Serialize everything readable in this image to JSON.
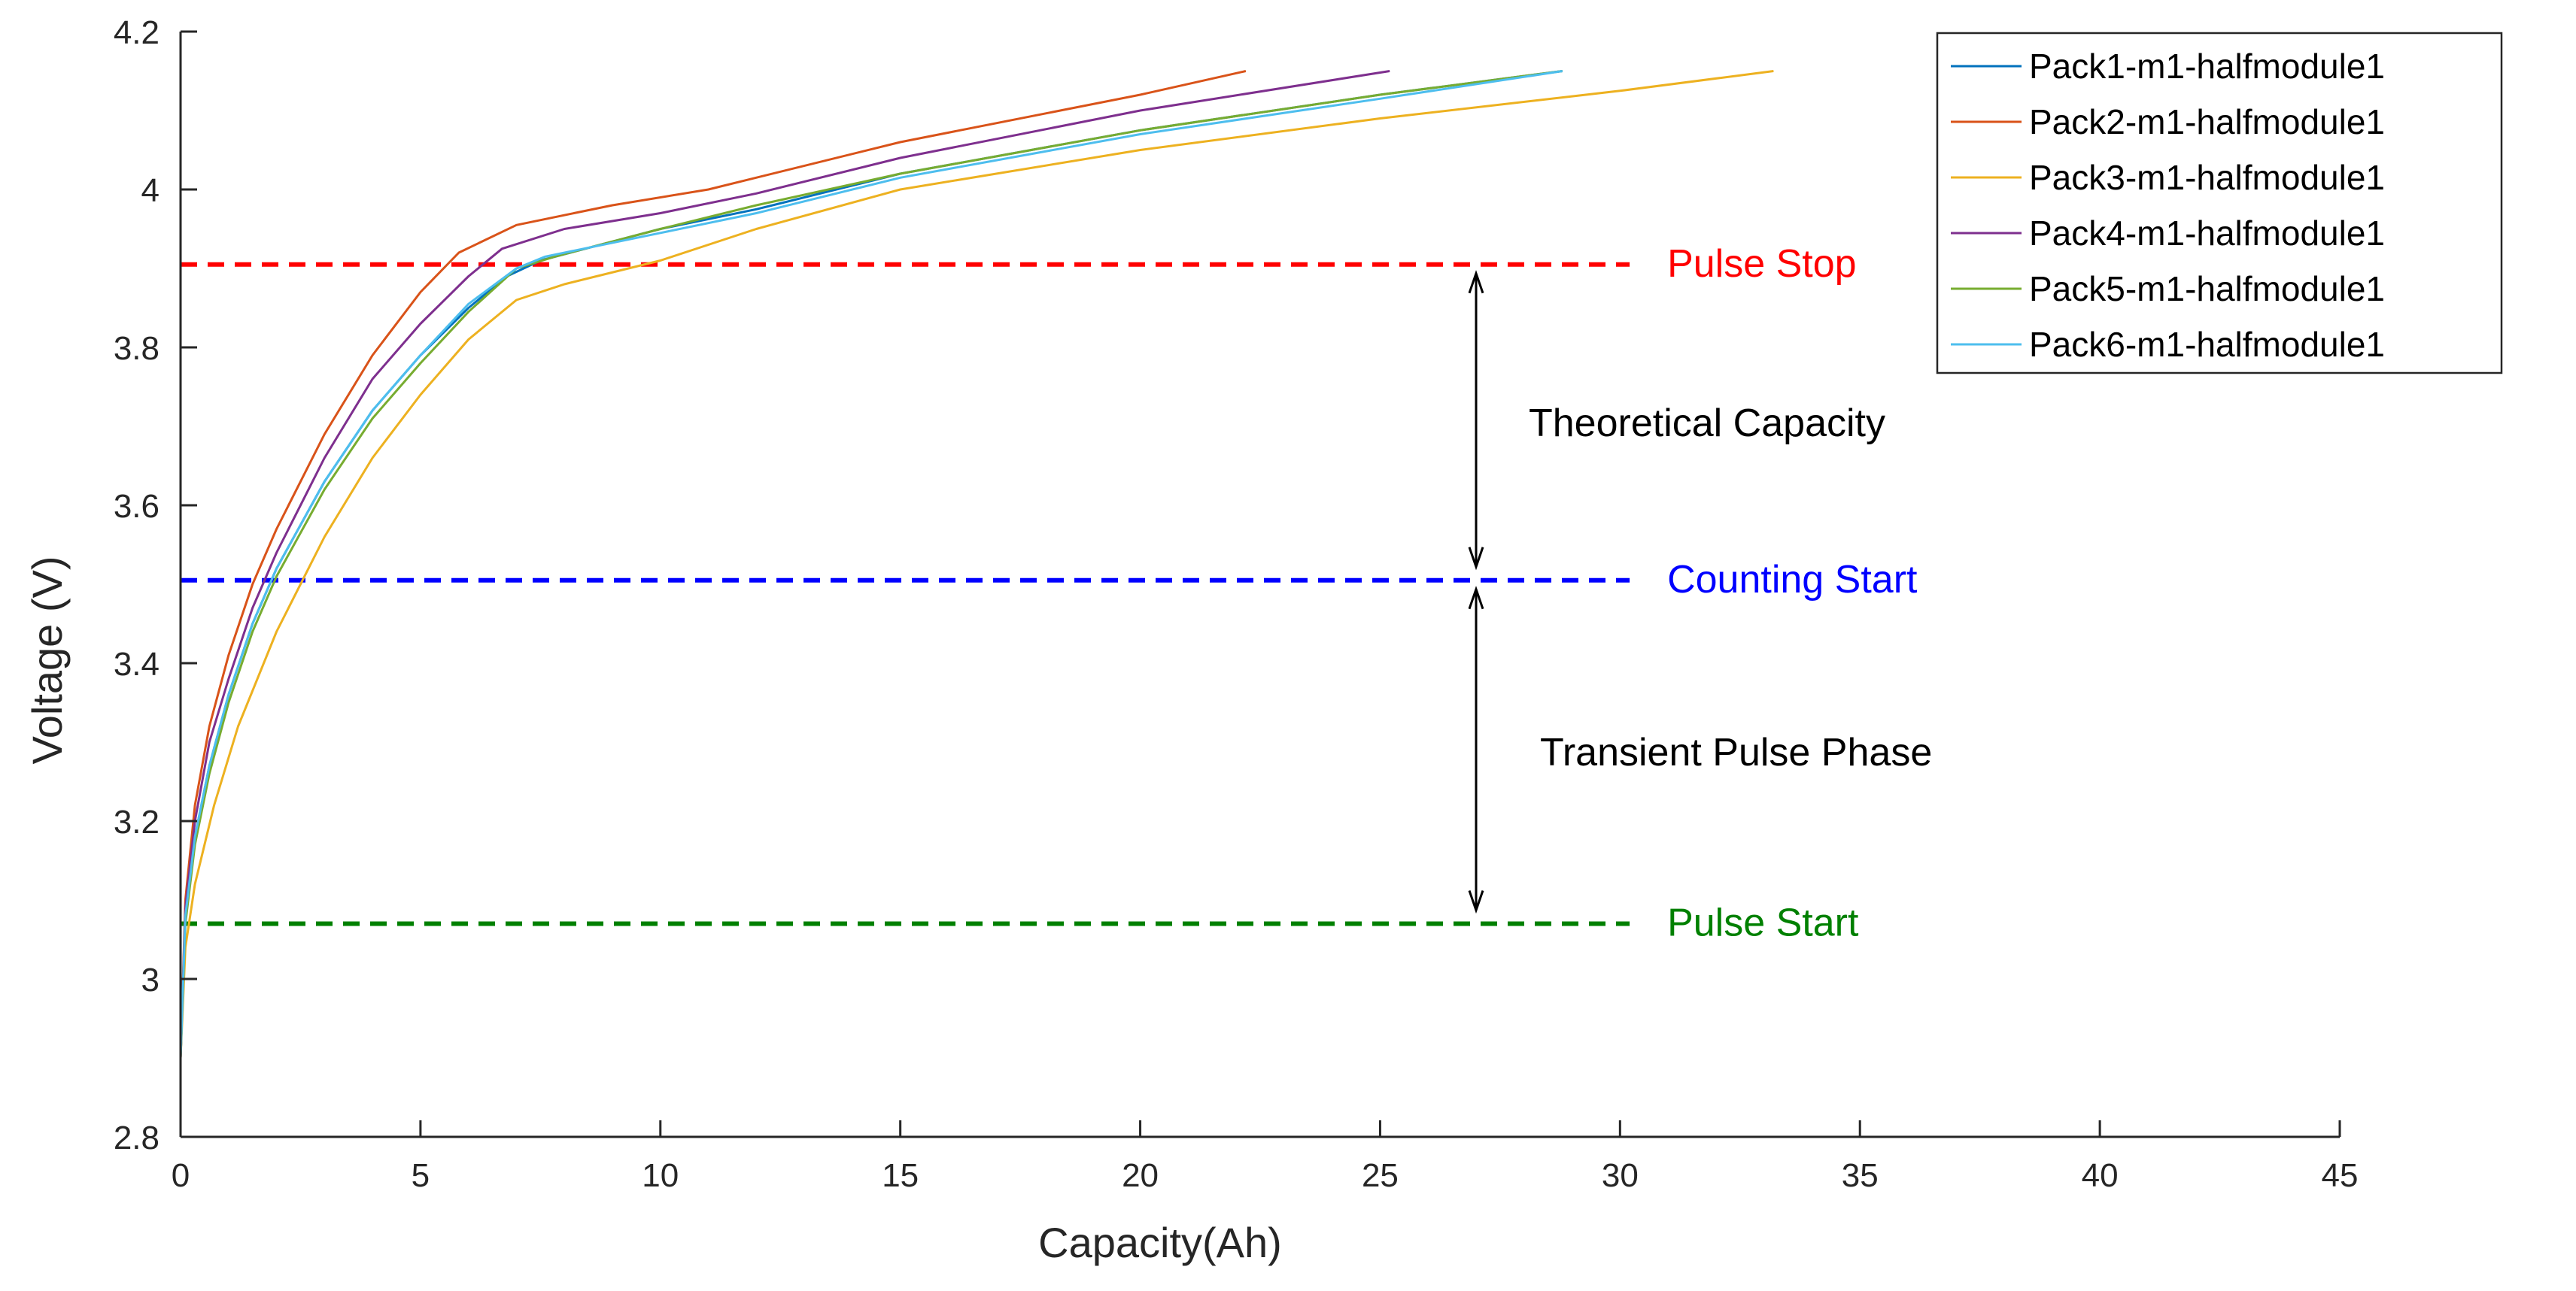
{
  "chart_data": {
    "type": "line",
    "title": "",
    "xlabel": "Capacity(Ah)",
    "ylabel": "Voltage (V)",
    "xlim": [
      0,
      45
    ],
    "ylim": [
      2.8,
      4.2
    ],
    "xticks": [
      "0",
      "5",
      "10",
      "15",
      "20",
      "25",
      "30",
      "35",
      "40",
      "45"
    ],
    "yticks": [
      "2.8",
      "3",
      "3.2",
      "3.4",
      "3.6",
      "3.8",
      "4",
      "4.2"
    ],
    "grid": false,
    "legend_position": "top-right",
    "series": [
      {
        "name": "Pack1-m1-halfmodule1",
        "color": "#0072BD",
        "points": [
          [
            0,
            2.9
          ],
          [
            0.1,
            3.08
          ],
          [
            0.3,
            3.18
          ],
          [
            0.6,
            3.27
          ],
          [
            1,
            3.36
          ],
          [
            1.5,
            3.45
          ],
          [
            2,
            3.52
          ],
          [
            3,
            3.63
          ],
          [
            4,
            3.72
          ],
          [
            5,
            3.79
          ],
          [
            6,
            3.85
          ],
          [
            6.8,
            3.89
          ],
          [
            7.5,
            3.91
          ],
          [
            10,
            3.95
          ],
          [
            12,
            3.975
          ],
          [
            15,
            4.02
          ],
          [
            20,
            4.075
          ],
          [
            25,
            4.12
          ],
          [
            28.8,
            4.15
          ]
        ]
      },
      {
        "name": "Pack2-m1-halfmodule1",
        "color": "#D95319",
        "points": [
          [
            0,
            2.9
          ],
          [
            0.1,
            3.1
          ],
          [
            0.3,
            3.22
          ],
          [
            0.6,
            3.32
          ],
          [
            1,
            3.41
          ],
          [
            1.5,
            3.5
          ],
          [
            2,
            3.57
          ],
          [
            3,
            3.69
          ],
          [
            4,
            3.79
          ],
          [
            5,
            3.87
          ],
          [
            5.8,
            3.92
          ],
          [
            7,
            3.955
          ],
          [
            9,
            3.98
          ],
          [
            11,
            4.0
          ],
          [
            15,
            4.06
          ],
          [
            20,
            4.12
          ],
          [
            22.2,
            4.15
          ]
        ]
      },
      {
        "name": "Pack3-m1-halfmodule1",
        "color": "#EDB120",
        "points": [
          [
            0,
            2.9
          ],
          [
            0.1,
            3.04
          ],
          [
            0.3,
            3.12
          ],
          [
            0.7,
            3.22
          ],
          [
            1.2,
            3.32
          ],
          [
            2,
            3.44
          ],
          [
            3,
            3.56
          ],
          [
            4,
            3.66
          ],
          [
            5,
            3.74
          ],
          [
            6,
            3.81
          ],
          [
            7,
            3.86
          ],
          [
            8,
            3.88
          ],
          [
            10,
            3.91
          ],
          [
            12,
            3.95
          ],
          [
            15,
            4.0
          ],
          [
            20,
            4.05
          ],
          [
            25,
            4.09
          ],
          [
            30,
            4.125
          ],
          [
            33.2,
            4.15
          ]
        ]
      },
      {
        "name": "Pack4-m1-halfmodule1",
        "color": "#7E2F8E",
        "points": [
          [
            0,
            2.9
          ],
          [
            0.1,
            3.09
          ],
          [
            0.3,
            3.2
          ],
          [
            0.6,
            3.3
          ],
          [
            1,
            3.38
          ],
          [
            1.5,
            3.47
          ],
          [
            2,
            3.54
          ],
          [
            3,
            3.66
          ],
          [
            4,
            3.76
          ],
          [
            5,
            3.83
          ],
          [
            6,
            3.89
          ],
          [
            6.7,
            3.925
          ],
          [
            8,
            3.95
          ],
          [
            10,
            3.97
          ],
          [
            12,
            3.995
          ],
          [
            15,
            4.04
          ],
          [
            20,
            4.1
          ],
          [
            25.2,
            4.15
          ]
        ]
      },
      {
        "name": "Pack5-m1-halfmodule1",
        "color": "#77AC30",
        "points": [
          [
            0,
            2.9
          ],
          [
            0.1,
            3.07
          ],
          [
            0.3,
            3.17
          ],
          [
            0.6,
            3.26
          ],
          [
            1,
            3.35
          ],
          [
            1.5,
            3.44
          ],
          [
            2,
            3.51
          ],
          [
            3,
            3.62
          ],
          [
            4,
            3.71
          ],
          [
            5,
            3.78
          ],
          [
            6,
            3.845
          ],
          [
            7,
            3.9
          ],
          [
            7.8,
            3.915
          ],
          [
            10,
            3.95
          ],
          [
            12,
            3.98
          ],
          [
            15,
            4.02
          ],
          [
            20,
            4.075
          ],
          [
            25,
            4.12
          ],
          [
            28.8,
            4.15
          ]
        ]
      },
      {
        "name": "Pack6-m1-halfmodule1",
        "color": "#4DBEEE",
        "points": [
          [
            0,
            2.9
          ],
          [
            0.1,
            3.08
          ],
          [
            0.3,
            3.18
          ],
          [
            0.6,
            3.27
          ],
          [
            1,
            3.36
          ],
          [
            1.5,
            3.45
          ],
          [
            2,
            3.52
          ],
          [
            3,
            3.63
          ],
          [
            4,
            3.72
          ],
          [
            5,
            3.79
          ],
          [
            6,
            3.855
          ],
          [
            7,
            3.9
          ],
          [
            7.6,
            3.915
          ],
          [
            10,
            3.945
          ],
          [
            12,
            3.97
          ],
          [
            15,
            4.015
          ],
          [
            20,
            4.07
          ],
          [
            25,
            4.115
          ],
          [
            28.8,
            4.15
          ]
        ]
      }
    ],
    "reference_lines": [
      {
        "label": "Pulse Stop",
        "y": 3.905,
        "x_end": 30.2,
        "color": "#FF0000"
      },
      {
        "label": "Counting Start",
        "y": 3.505,
        "x_end": 30.2,
        "color": "#0000FF"
      },
      {
        "label": "Pulse Start",
        "y": 3.07,
        "x_end": 30.2,
        "color": "#008000"
      }
    ],
    "annotations": [
      {
        "text": "Theoretical Capacity",
        "color": "#000000"
      },
      {
        "text": "Transient Pulse Phase",
        "color": "#000000"
      }
    ]
  }
}
